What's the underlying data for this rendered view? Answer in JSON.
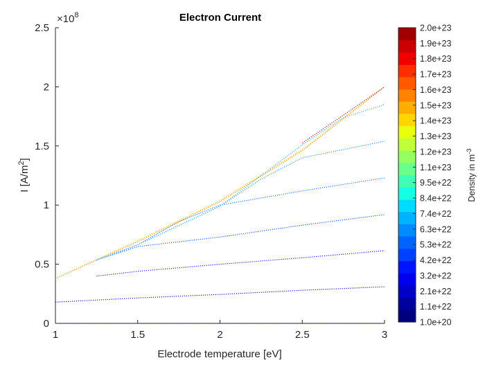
{
  "chart_data": {
    "type": "line",
    "title": "Electron Current",
    "xlabel": "Electrode temperature [eV]",
    "ylabel_base": "I [A/m",
    "ylabel_sup": "2",
    "ylabel_close": "]",
    "exponent_prefix": "×10",
    "exponent_power": "8",
    "xlim": [
      1,
      3
    ],
    "ylim": [
      0,
      2.5
    ],
    "xticks": [
      "1",
      "1.5",
      "2",
      "2.5",
      "3"
    ],
    "yticks": [
      "0",
      "0.5",
      "1",
      "1.5",
      "2",
      "2.5"
    ],
    "line_style": "dotted",
    "series": [
      {
        "color": "#00007f",
        "x": [
          1,
          1.5,
          2,
          2.5,
          3
        ],
        "y": [
          0.0,
          0.0,
          0.0,
          0.0,
          0.0
        ]
      },
      {
        "color": "#0000bb",
        "x": [
          1,
          1.5,
          2,
          2.5,
          3
        ],
        "y": [
          0.18,
          0.215,
          0.245,
          0.28,
          0.31
        ]
      },
      {
        "color": "#0010ff",
        "x": [
          1.25,
          1.5,
          2,
          2.5,
          3
        ],
        "y": [
          0.4,
          0.44,
          0.5,
          0.555,
          0.615
        ]
      },
      {
        "color": "#0050ff",
        "x": [
          1.25,
          1.5,
          2,
          2.5,
          3
        ],
        "y": [
          0.535,
          0.65,
          0.73,
          0.83,
          0.92
        ]
      },
      {
        "color": "#1070ff",
        "x": [
          1.25,
          1.5,
          1.75,
          2,
          2.5,
          3
        ],
        "y": [
          0.535,
          0.665,
          0.86,
          1.0,
          1.12,
          1.23
        ]
      },
      {
        "color": "#2090ff",
        "x": [
          1.25,
          1.5,
          2,
          2.25,
          2.5,
          3
        ],
        "y": [
          0.535,
          0.665,
          0.99,
          1.22,
          1.4,
          1.54
        ]
      },
      {
        "color": "#30a8ff",
        "x": [
          1.25,
          1.5,
          2,
          2.5,
          2.75,
          3
        ],
        "y": [
          0.535,
          0.665,
          0.99,
          1.51,
          1.74,
          1.85
        ]
      },
      {
        "color": "#ffd000",
        "x": [
          1,
          1.25,
          1.5,
          2,
          2.5,
          3
        ],
        "y": [
          0.38,
          0.54,
          0.7,
          1.04,
          1.47,
          2.0
        ]
      },
      {
        "color": "#ff8000",
        "x": [
          1,
          1.25,
          1.5,
          2,
          2.5,
          3
        ],
        "y": [
          0.38,
          0.535,
          0.69,
          1.03,
          1.46,
          2.0
        ]
      },
      {
        "color": "#a00000",
        "x": [
          2.5,
          2.75,
          3
        ],
        "y": [
          1.525,
          1.76,
          2.0
        ]
      }
    ],
    "colorbar": {
      "label_base": "Density in m",
      "label_sup": "-3",
      "colors": [
        "#00007f",
        "#00009f",
        "#0000c8",
        "#0000ee",
        "#0015ff",
        "#0040ff",
        "#0065ff",
        "#008cff",
        "#00b2ff",
        "#00dbff",
        "#14ffe3",
        "#3fffb7",
        "#6aff8c",
        "#95ff61",
        "#c0ff37",
        "#e8ff0e",
        "#ffd600",
        "#ffae00",
        "#ff8200",
        "#ff5a00",
        "#ff2e00",
        "#f20000",
        "#cb0000",
        "#a00000"
      ],
      "ticks": [
        "1.0e+20",
        "1.1e+22",
        "2.1e+22",
        "3.2e+22",
        "4.2e+22",
        "5.3e+22",
        "6.3e+22",
        "7.4e+22",
        "8.4e+22",
        "9.5e+22",
        "1.1e+23",
        "1.2e+23",
        "1.3e+23",
        "1.4e+23",
        "1.5e+23",
        "1.6e+23",
        "1.7e+23",
        "1.8e+23",
        "1.9e+23",
        "2.0e+23"
      ]
    }
  }
}
